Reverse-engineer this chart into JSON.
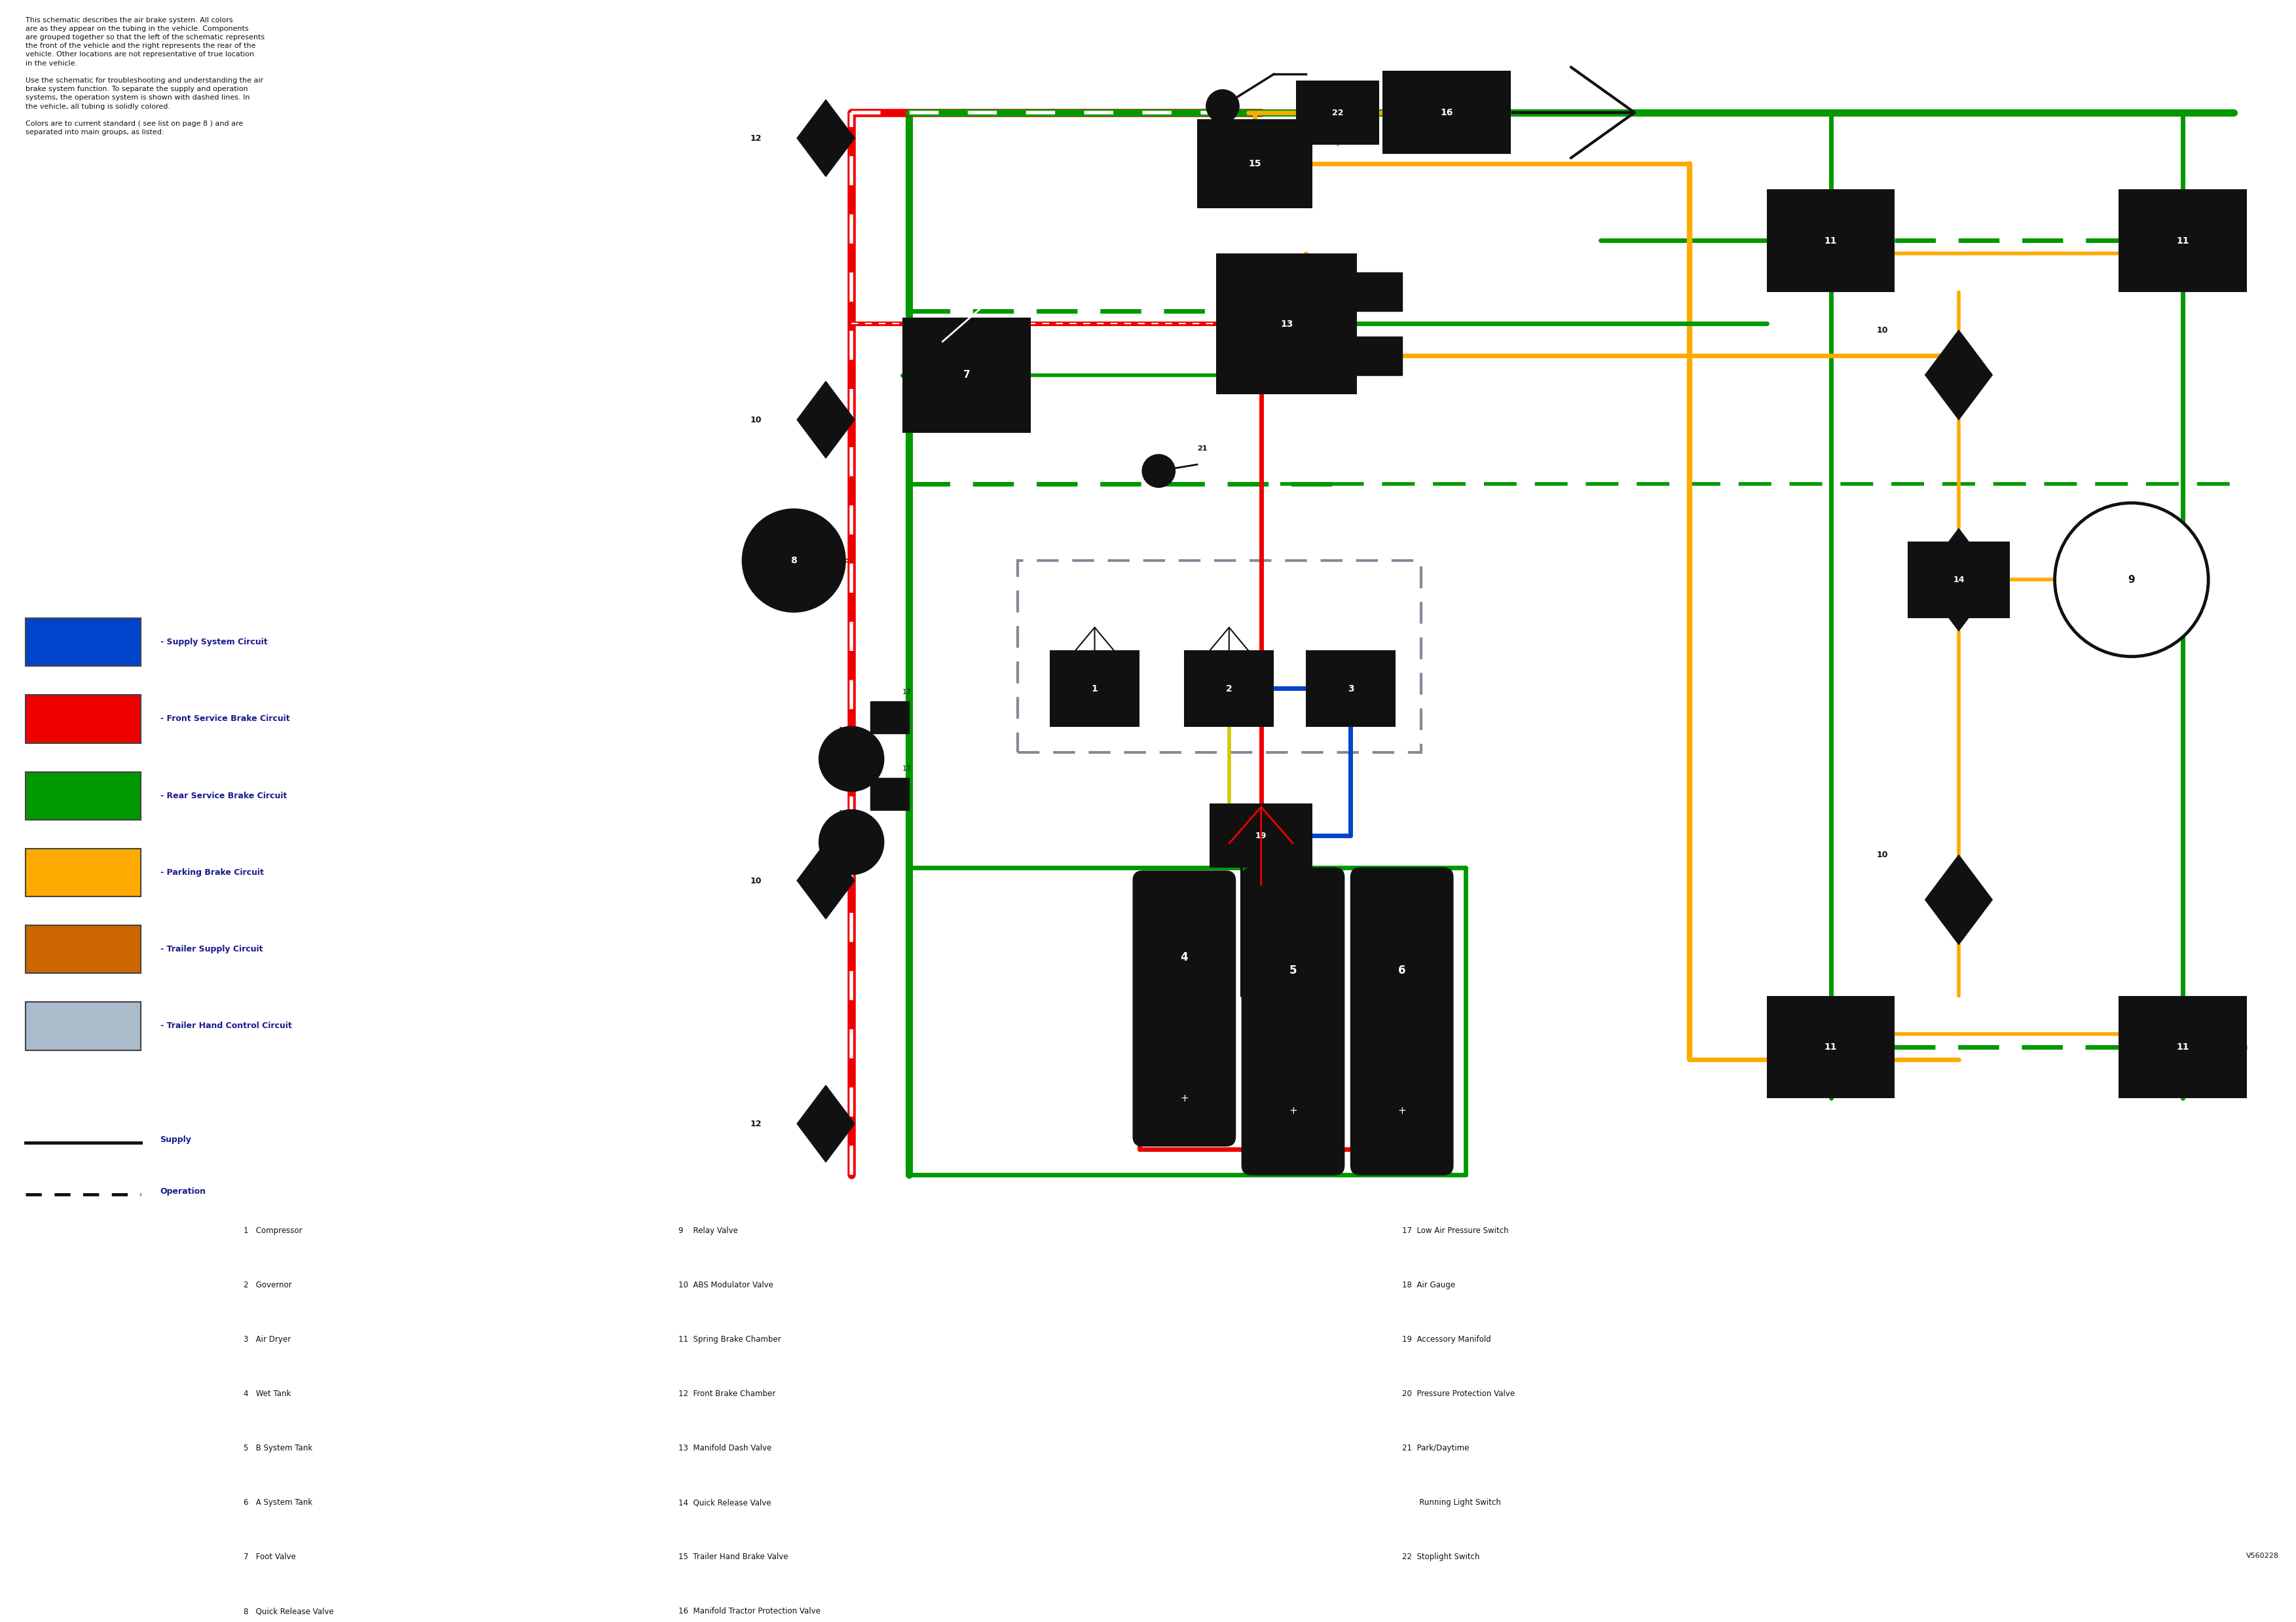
{
  "bg": "#ffffff",
  "red": "#ee0000",
  "green": "#009900",
  "blue": "#0044cc",
  "orange_y": "#ffaa00",
  "orange_d": "#cc6600",
  "gray_t": "#aabbcc",
  "black": "#111111",
  "white": "#ffffff",
  "text_color": "#1a1a8c",
  "desc": "This schematic describes the air brake system. All colors\nare as they appear on the tubing in the vehicle. Components\nare grouped together so that the left of the schematic represents\nthe front of the vehicle and the right represents the rear of the\nvehicle. Other locations are not representative of true location\nin the vehicle.\n\nUse the schematic for troubleshooting and understanding the air\nbrake system function. To separate the supply and operation\nsystems, the operation system is shown with dashed lines. In\nthe vehicle, all tubing is solidly colored.\n\nColors are to current standard ( see list on page 8 ) and are\nseparated into main groups, as listed:",
  "legend": [
    [
      "#0044cc",
      "Supply System Circuit"
    ],
    [
      "#ee0000",
      "Front Service Brake Circuit"
    ],
    [
      "#009900",
      "Rear Service Brake Circuit"
    ],
    [
      "#ffaa00",
      "Parking Brake Circuit"
    ],
    [
      "#cc6600",
      "Trailer Supply Circuit"
    ],
    [
      "#aabbcc",
      "Trailer Hand Control Circuit"
    ]
  ],
  "col1": [
    "1   Compressor",
    "2   Governor",
    "3   Air Dryer",
    "4   Wet Tank",
    "5   B System Tank",
    "6   A System Tank",
    "7   Foot Valve",
    "8   Quick Release Valve"
  ],
  "col2": [
    "9    Relay Valve",
    "10  ABS Modulator Valve",
    "11  Spring Brake Chamber",
    "12  Front Brake Chamber",
    "13  Manifold Dash Valve",
    "14  Quick Release Valve",
    "15  Trailer Hand Brake Valve",
    "16  Manifold Tractor Protection Valve"
  ],
  "col3": [
    "17  Low Air Pressure Switch",
    "18  Air Gauge",
    "19  Accessory Manifold",
    "20  Pressure Protection Valve",
    "21  Park/Daytime",
    "       Running Light Switch",
    "22  Stoplight Switch"
  ],
  "version": "V560228"
}
